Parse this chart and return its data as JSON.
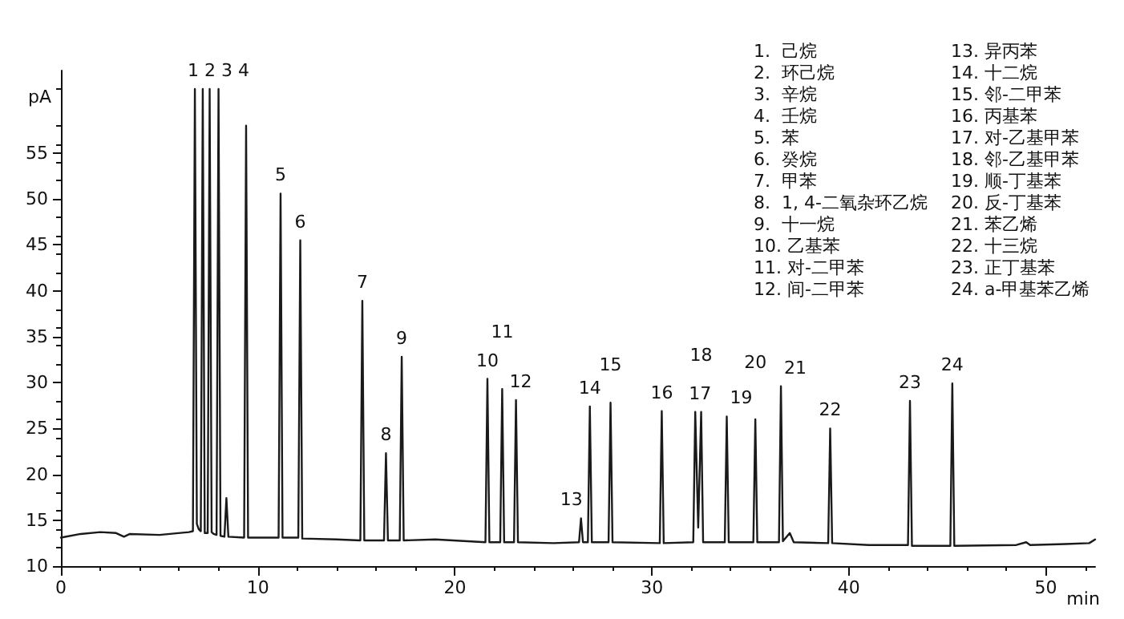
{
  "chart_data": {
    "type": "line",
    "xlabel": "min",
    "ylabel": "pA",
    "marker": "none",
    "x": [
      0,
      1,
      2,
      2.8,
      3.2,
      3.5,
      5,
      6.5,
      6.7,
      6.8,
      6.9,
      7.0,
      7.1,
      7.2,
      7.3,
      7.45,
      7.55,
      7.65,
      7.75,
      7.9,
      8.0,
      8.1,
      8.3,
      8.4,
      8.5,
      9.3,
      9.4,
      9.5,
      10.5,
      11.05,
      11.15,
      11.25,
      12.05,
      12.15,
      12.25,
      14,
      15.2,
      15.3,
      15.4,
      16.4,
      16.5,
      16.6,
      17.2,
      17.3,
      17.4,
      19,
      21.55,
      21.65,
      21.75,
      22.3,
      22.4,
      22.5,
      23.0,
      23.1,
      23.2,
      25,
      26.3,
      26.4,
      26.5,
      26.75,
      26.85,
      26.95,
      27.8,
      27.9,
      28.0,
      30.4,
      30.5,
      30.6,
      32.1,
      32.2,
      32.35,
      32.5,
      32.6,
      33.7,
      33.8,
      33.9,
      35.15,
      35.25,
      35.35,
      36.45,
      36.55,
      36.65,
      37.0,
      37.2,
      38.95,
      39.05,
      39.15,
      41,
      43.0,
      43.1,
      43.2,
      45.15,
      45.25,
      45.35,
      48.5,
      49,
      49.2,
      51,
      52.2,
      52.5
    ],
    "series": [
      {
        "color": "#1a1a1a",
        "values": [
          13.1,
          13.5,
          13.7,
          13.6,
          13.2,
          13.5,
          13.4,
          13.7,
          13.8,
          62,
          14.6,
          14.0,
          13.8,
          62,
          13.6,
          13.6,
          62,
          13.7,
          13.5,
          13.4,
          62,
          13.3,
          13.2,
          17.4,
          13.2,
          13.1,
          58.0,
          13.1,
          13.1,
          13.1,
          50.6,
          13.1,
          13.1,
          45.5,
          13.0,
          12.9,
          12.8,
          38.9,
          12.8,
          12.8,
          22.3,
          12.8,
          12.8,
          32.8,
          12.8,
          12.9,
          12.6,
          30.4,
          12.6,
          12.6,
          29.3,
          12.6,
          12.6,
          28.1,
          12.6,
          12.5,
          12.6,
          15.2,
          12.6,
          12.6,
          27.4,
          12.6,
          12.6,
          27.8,
          12.6,
          12.5,
          26.9,
          12.5,
          12.6,
          26.8,
          14.2,
          26.8,
          12.6,
          12.6,
          26.3,
          12.6,
          12.6,
          26.0,
          12.6,
          12.6,
          29.6,
          12.7,
          13.6,
          12.6,
          12.5,
          25.0,
          12.5,
          12.3,
          12.3,
          28.0,
          12.2,
          12.2,
          29.9,
          12.2,
          12.3,
          12.6,
          12.3,
          12.4,
          12.5,
          12.9
        ]
      }
    ],
    "xlim": [
      0,
      52.5
    ],
    "xticks": [
      0,
      10,
      20,
      30,
      40,
      50
    ],
    "ylim": [
      10,
      64
    ],
    "yticks": [
      10,
      15,
      20,
      25,
      30,
      35,
      40,
      45,
      50,
      55
    ],
    "annotations": [
      {
        "text": "1 2 3 4",
        "x": 8.0,
        "y": 62
      },
      {
        "text": "5",
        "x": 11.15,
        "y": 50.6
      },
      {
        "text": "6",
        "x": 12.15,
        "y": 45.5
      },
      {
        "text": "7",
        "x": 15.3,
        "y": 38.9
      },
      {
        "text": "8",
        "x": 16.5,
        "y": 22.3
      },
      {
        "text": "9",
        "x": 17.3,
        "y": 32.8
      },
      {
        "text": "10",
        "x": 21.65,
        "y": 30.4
      },
      {
        "text": "11",
        "x": 22.4,
        "y": 29.3
      },
      {
        "text": "12",
        "x": 23.1,
        "y": 28.1
      },
      {
        "text": "13",
        "x": 26.4,
        "y": 15.2
      },
      {
        "text": "14",
        "x": 26.85,
        "y": 27.4
      },
      {
        "text": "15",
        "x": 27.9,
        "y": 27.8
      },
      {
        "text": "16",
        "x": 30.5,
        "y": 26.9
      },
      {
        "text": "17",
        "x": 32.2,
        "y": 26.8
      },
      {
        "text": "18",
        "x": 32.5,
        "y": 26.8
      },
      {
        "text": "19",
        "x": 33.8,
        "y": 26.3
      },
      {
        "text": "20",
        "x": 35.25,
        "y": 26.0
      },
      {
        "text": "21",
        "x": 36.55,
        "y": 29.6
      },
      {
        "text": "22",
        "x": 39.05,
        "y": 25.0
      },
      {
        "text": "23",
        "x": 43.1,
        "y": 28.0
      },
      {
        "text": "24",
        "x": 45.25,
        "y": 29.9
      },
      "1.  己烷",
      "2.  环己烷",
      "3.  辛烷",
      "4.  壬烷",
      "5.  苯",
      "6.  癸烷",
      "7.  甲苯",
      "8.  1, 4-二氧杂环乙烷",
      "9.  十一烷",
      "10. 乙基苯",
      "11. 对-二甲苯",
      "12. 间-二甲苯",
      "13. 异丙苯",
      "14. 十二烷",
      "15. 邻-二甲苯",
      "16. 丙基苯",
      "17. 对-乙基甲苯",
      "18. 邻-乙基甲苯",
      "19. 顺-丁基苯",
      "20. 反-丁基苯",
      "21. 苯乙烯",
      "22. 十三烷",
      "23. 正丁基苯",
      "24. a-甲基苯乙烯"
    ]
  }
}
